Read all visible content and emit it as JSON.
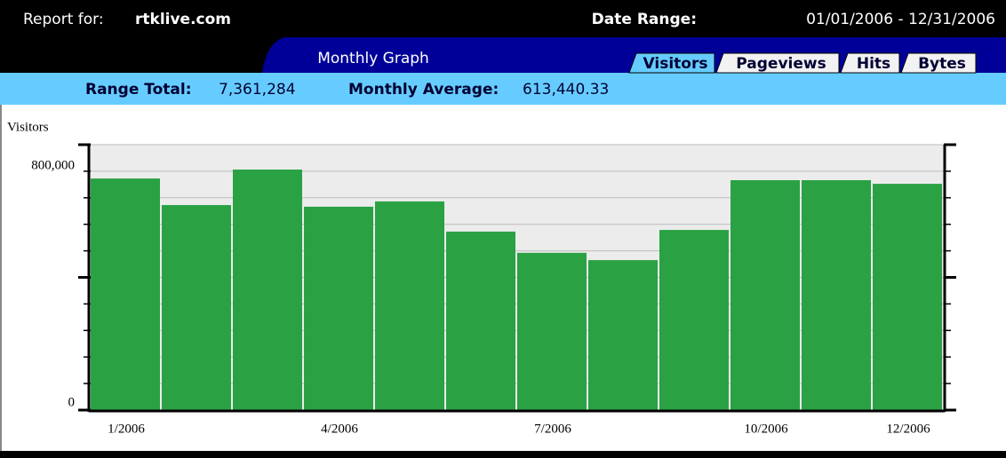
{
  "header": {
    "report_label": "Report for:",
    "site": "rtklive.com",
    "date_range_label": "Date Range:",
    "date_range": "01/01/2006 - 12/31/2006",
    "tab_title": "Monthly Graph",
    "tabs": [
      "Visitors",
      "Pageviews",
      "Hits",
      "Bytes"
    ],
    "active_tab": 0,
    "range_total_label": "Range Total:",
    "range_total": "7,361,284",
    "monthly_average_label": "Monthly Average:",
    "monthly_average": "613,440.33"
  },
  "chart_data": {
    "type": "bar",
    "ylabel": "Visitors",
    "categories": [
      "1/2006",
      null,
      null,
      "4/2006",
      null,
      null,
      "7/2006",
      null,
      null,
      "10/2006",
      null,
      "12/2006"
    ],
    "values": [
      698000,
      618000,
      725000,
      613000,
      629000,
      538000,
      474000,
      452000,
      543000,
      693000,
      693000,
      682000
    ],
    "color": "#2aa244",
    "ylim": [
      0,
      800000
    ],
    "yticks": [
      0,
      {
        "value": 800000,
        "label": "800,000"
      }
    ],
    "minor_yticks": [
      80000,
      160000,
      240000,
      320000,
      400000,
      480000,
      560000,
      640000,
      720000
    ],
    "grid": true
  }
}
